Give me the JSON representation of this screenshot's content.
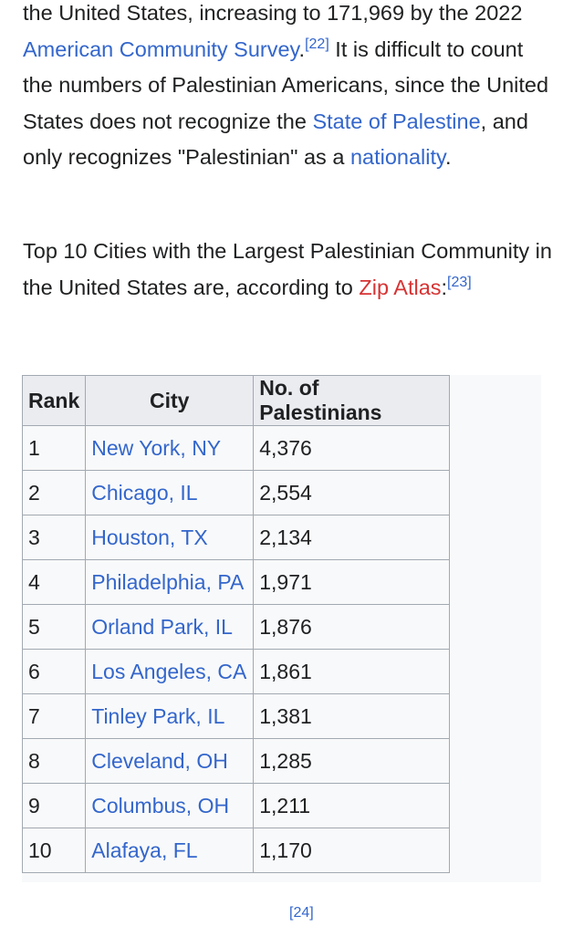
{
  "para1": {
    "t1": "the United States, increasing to 171,969 by the 2022 ",
    "link_acs": "American Community Survey",
    "t2": ".",
    "ref1": "[22]",
    "t3": " It is difficult to count the numbers of Palestinian Americans, since the United States does not recognize the ",
    "link_state": "State of Palestine",
    "t4": ", and only recognizes \"Palestinian\" as a ",
    "link_nationality": "nationality",
    "t5": "."
  },
  "para2": {
    "t1": "Top 10 Cities with the Largest Palestinian Community in the United States are, according to ",
    "link_zip": "Zip Atlas",
    "t2": ":",
    "ref": "[23]"
  },
  "table": {
    "headers": [
      "Rank",
      "City",
      "No. of Palestinians"
    ],
    "rows": [
      {
        "rank": "1",
        "city": "New York, NY",
        "count": "4,376"
      },
      {
        "rank": "2",
        "city": "Chicago, IL",
        "count": "2,554"
      },
      {
        "rank": "3",
        "city": "Houston, TX",
        "count": "2,134"
      },
      {
        "rank": "4",
        "city": "Philadelphia, PA",
        "count": "1,971"
      },
      {
        "rank": "5",
        "city": "Orland Park, IL",
        "count": "1,876"
      },
      {
        "rank": "6",
        "city": "Los Angeles, CA",
        "count": "1,861"
      },
      {
        "rank": "7",
        "city": "Tinley Park, IL",
        "count": "1,381"
      },
      {
        "rank": "8",
        "city": "Cleveland, OH",
        "count": "1,285"
      },
      {
        "rank": "9",
        "city": "Columbus, OH",
        "count": "1,211"
      },
      {
        "rank": "10",
        "city": "Alafaya, FL",
        "count": "1,170"
      }
    ]
  },
  "cutoff": {
    "ref": "[24]"
  },
  "colors": {
    "link": "#3366cc",
    "link_new": "#d73333",
    "text": "#202122",
    "header_bg": "#eaecf0",
    "table_bg": "#f8f9fa",
    "border": "#a2a9b1"
  }
}
